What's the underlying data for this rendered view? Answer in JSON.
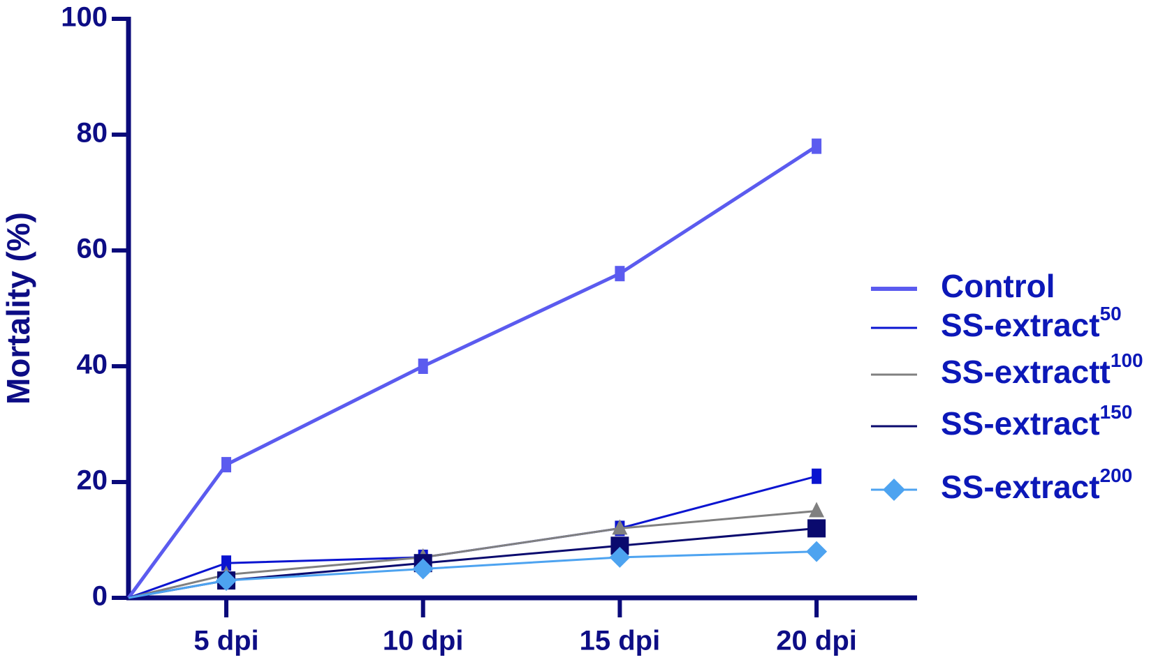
{
  "chart_data": {
    "type": "line",
    "ylabel": "Mortality (%)",
    "categories": [
      null,
      "5 dpi",
      "10 dpi",
      "15 dpi",
      "20 dpi"
    ],
    "ylim": [
      0,
      100
    ],
    "yticks": [
      0,
      20,
      40,
      60,
      80,
      100
    ],
    "series": [
      {
        "name": "Control",
        "color": "#5b5bef",
        "values": [
          0,
          23,
          40,
          56,
          78
        ]
      },
      {
        "name": "SS-extract",
        "name_sup": "50",
        "color": "#0a14d0",
        "values": [
          0,
          6,
          7,
          12,
          21
        ]
      },
      {
        "name": "SS-extractt",
        "name_sup": "100",
        "color": "#808080",
        "values": [
          0,
          4,
          7,
          12,
          15
        ]
      },
      {
        "name": "SS-extract",
        "name_sup": "150",
        "color": "#0a0a6e",
        "values": [
          0,
          3,
          6,
          9,
          12
        ]
      },
      {
        "name": "SS-extract",
        "name_sup": "200",
        "color": "#4da3f0",
        "values": [
          0,
          3,
          5,
          7,
          8
        ]
      }
    ]
  }
}
